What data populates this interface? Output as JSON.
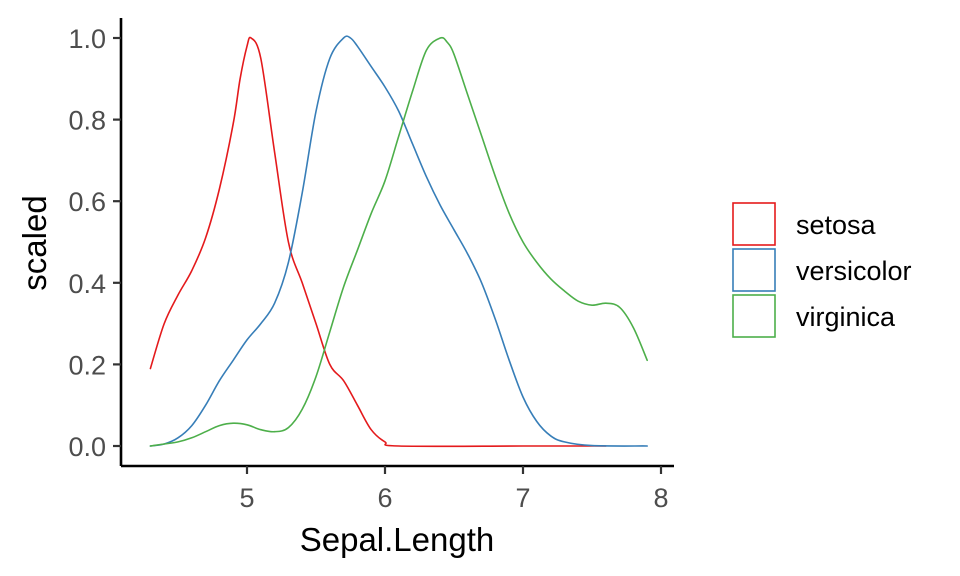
{
  "chart_data": {
    "type": "line",
    "title": "",
    "xlabel": "Sepal.Length",
    "ylabel": "scaled",
    "xlim": [
      4.3,
      7.9
    ],
    "ylim": [
      0.0,
      1.0
    ],
    "x_ticks": [
      5,
      6,
      7,
      8
    ],
    "x_tick_labels": [
      "5",
      "6",
      "7",
      "8"
    ],
    "y_ticks": [
      0.0,
      0.2,
      0.4,
      0.6,
      0.8,
      1.0
    ],
    "y_tick_labels": [
      "0.0",
      "0.2",
      "0.4",
      "0.6",
      "0.8",
      "1.0"
    ],
    "grid": false,
    "legend_position": "right",
    "series": [
      {
        "name": "setosa",
        "color": "#E41A1C",
        "points": [
          [
            4.3,
            0.19
          ],
          [
            4.4,
            0.3
          ],
          [
            4.5,
            0.37
          ],
          [
            4.6,
            0.43
          ],
          [
            4.7,
            0.51
          ],
          [
            4.8,
            0.63
          ],
          [
            4.9,
            0.79
          ],
          [
            4.95,
            0.9
          ],
          [
            5.0,
            0.98
          ],
          [
            5.03,
            1.0
          ],
          [
            5.1,
            0.95
          ],
          [
            5.2,
            0.72
          ],
          [
            5.3,
            0.5
          ],
          [
            5.4,
            0.4
          ],
          [
            5.5,
            0.3
          ],
          [
            5.6,
            0.2
          ],
          [
            5.7,
            0.16
          ],
          [
            5.8,
            0.1
          ],
          [
            5.9,
            0.04
          ],
          [
            6.0,
            0.01
          ],
          [
            6.1,
            0.0
          ],
          [
            7.0,
            0.0
          ],
          [
            7.6,
            0.0
          ]
        ]
      },
      {
        "name": "versicolor",
        "color": "#377EB8",
        "points": [
          [
            4.3,
            0.0
          ],
          [
            4.4,
            0.005
          ],
          [
            4.5,
            0.02
          ],
          [
            4.6,
            0.05
          ],
          [
            4.7,
            0.1
          ],
          [
            4.8,
            0.16
          ],
          [
            4.9,
            0.21
          ],
          [
            5.0,
            0.26
          ],
          [
            5.1,
            0.3
          ],
          [
            5.2,
            0.35
          ],
          [
            5.3,
            0.45
          ],
          [
            5.4,
            0.62
          ],
          [
            5.5,
            0.82
          ],
          [
            5.6,
            0.95
          ],
          [
            5.7,
            1.0
          ],
          [
            5.75,
            1.0
          ],
          [
            5.8,
            0.98
          ],
          [
            5.9,
            0.93
          ],
          [
            6.0,
            0.88
          ],
          [
            6.1,
            0.82
          ],
          [
            6.2,
            0.74
          ],
          [
            6.3,
            0.66
          ],
          [
            6.4,
            0.59
          ],
          [
            6.5,
            0.53
          ],
          [
            6.6,
            0.47
          ],
          [
            6.7,
            0.4
          ],
          [
            6.8,
            0.31
          ],
          [
            6.9,
            0.21
          ],
          [
            7.0,
            0.12
          ],
          [
            7.1,
            0.06
          ],
          [
            7.2,
            0.025
          ],
          [
            7.3,
            0.01
          ],
          [
            7.5,
            0.001
          ],
          [
            7.9,
            0.0
          ]
        ]
      },
      {
        "name": "virginica",
        "color": "#4DAF4A",
        "points": [
          [
            4.3,
            0.0
          ],
          [
            4.4,
            0.005
          ],
          [
            4.5,
            0.01
          ],
          [
            4.6,
            0.02
          ],
          [
            4.7,
            0.035
          ],
          [
            4.8,
            0.05
          ],
          [
            4.9,
            0.056
          ],
          [
            5.0,
            0.052
          ],
          [
            5.1,
            0.04
          ],
          [
            5.2,
            0.035
          ],
          [
            5.3,
            0.045
          ],
          [
            5.4,
            0.09
          ],
          [
            5.5,
            0.17
          ],
          [
            5.6,
            0.28
          ],
          [
            5.7,
            0.39
          ],
          [
            5.8,
            0.48
          ],
          [
            5.9,
            0.57
          ],
          [
            6.0,
            0.65
          ],
          [
            6.1,
            0.76
          ],
          [
            6.2,
            0.87
          ],
          [
            6.3,
            0.97
          ],
          [
            6.4,
            1.0
          ],
          [
            6.45,
            0.99
          ],
          [
            6.5,
            0.96
          ],
          [
            6.6,
            0.86
          ],
          [
            6.7,
            0.76
          ],
          [
            6.8,
            0.66
          ],
          [
            6.9,
            0.57
          ],
          [
            7.0,
            0.5
          ],
          [
            7.1,
            0.45
          ],
          [
            7.2,
            0.41
          ],
          [
            7.3,
            0.38
          ],
          [
            7.4,
            0.355
          ],
          [
            7.5,
            0.345
          ],
          [
            7.6,
            0.35
          ],
          [
            7.7,
            0.34
          ],
          [
            7.8,
            0.29
          ],
          [
            7.9,
            0.21
          ]
        ]
      }
    ]
  }
}
